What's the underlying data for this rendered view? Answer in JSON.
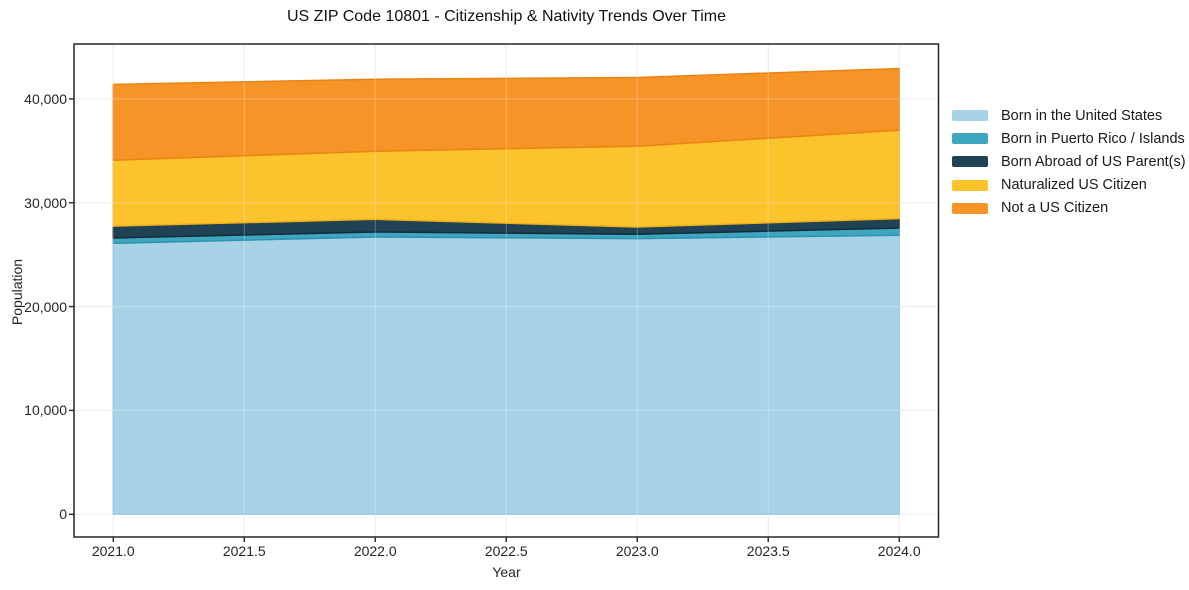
{
  "figure": {
    "background_color": "#ffffff",
    "spine_color": "#262626",
    "grid_color": "#e7e7e7",
    "text_color": "#262626"
  },
  "chart_data": {
    "type": "area",
    "stacked": true,
    "title": "US ZIP Code 10801 - Citizenship & Nativity Trends Over Time",
    "xlabel": "Year",
    "ylabel": "Population",
    "x": [
      2021,
      2022,
      2023,
      2024
    ],
    "series": [
      {
        "name": "Born in the United States",
        "color": "#A8D3E7",
        "edge_color": "#8CC0DB",
        "values": [
          26100,
          26700,
          26550,
          26870
        ]
      },
      {
        "name": "Born in Puerto Rico / Islands",
        "color": "#3FA6C0",
        "edge_color": "#2E93AD",
        "values": [
          510,
          480,
          420,
          700
        ]
      },
      {
        "name": "Born Abroad of US Parent(s)",
        "color": "#1F4254",
        "edge_color": "#132C3A",
        "values": [
          1140,
          1230,
          700,
          900
        ]
      },
      {
        "name": "Naturalized US Citizen",
        "color": "#FDC32D",
        "edge_color": "#F0B01A",
        "values": [
          6350,
          6560,
          7780,
          8520
        ]
      },
      {
        "name": "Not a US Citizen",
        "color": "#F79428",
        "edge_color": "#E98414",
        "values": [
          7300,
          6930,
          6610,
          5940
        ]
      }
    ],
    "xticks": [
      {
        "v": 2021.0,
        "label": "2021.0"
      },
      {
        "v": 2021.5,
        "label": "2021.5"
      },
      {
        "v": 2022.0,
        "label": "2022.0"
      },
      {
        "v": 2022.5,
        "label": "2022.5"
      },
      {
        "v": 2023.0,
        "label": "2023.0"
      },
      {
        "v": 2023.5,
        "label": "2023.5"
      },
      {
        "v": 2024.0,
        "label": "2024.0"
      }
    ],
    "yticks": [
      {
        "v": 0,
        "label": "0"
      },
      {
        "v": 10000,
        "label": "10,000"
      },
      {
        "v": 20000,
        "label": "20,000"
      },
      {
        "v": 30000,
        "label": "30,000"
      },
      {
        "v": 40000,
        "label": "40,000"
      }
    ],
    "xlim": [
      2020.85,
      2024.15
    ],
    "ylim": [
      -2190,
      45290
    ],
    "grid": true,
    "legend_position": "right"
  }
}
